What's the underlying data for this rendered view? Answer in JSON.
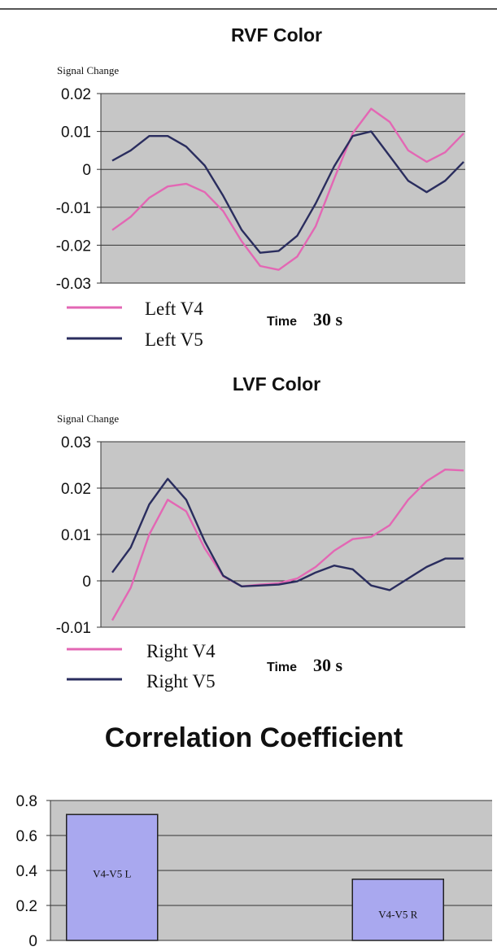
{
  "chart_data": [
    {
      "type": "line",
      "title": "RVF Color",
      "ylabel": "Signal Change",
      "xlabel_time": "Time",
      "xlabel_value": "30 s",
      "ylim": [
        -0.03,
        0.02
      ],
      "yticks": [
        "0.02",
        "0.01",
        "0",
        "-0.01",
        "-0.02",
        "-0.03"
      ],
      "grid": true,
      "legend": "bottom-left",
      "series": [
        {
          "name": "Left V4",
          "color": "#e367b4",
          "values": [
            -0.016,
            -0.0125,
            -0.0075,
            -0.0045,
            -0.0038,
            -0.006,
            -0.011,
            -0.019,
            -0.0255,
            -0.0265,
            -0.023,
            -0.015,
            -0.0025,
            0.0095,
            0.016,
            0.0125,
            0.005,
            0.002,
            0.0045,
            0.0095
          ]
        },
        {
          "name": "Left V5",
          "color": "#2a2d5e",
          "values": [
            0.0023,
            0.005,
            0.0088,
            0.0088,
            0.006,
            0.001,
            -0.007,
            -0.016,
            -0.022,
            -0.0215,
            -0.0175,
            -0.009,
            0.0008,
            0.0088,
            0.01,
            0.0035,
            -0.003,
            -0.006,
            -0.003,
            0.002
          ]
        }
      ]
    },
    {
      "type": "line",
      "title": "LVF Color",
      "ylabel": "Signal Change",
      "xlabel_time": "Time",
      "xlabel_value": "30 s",
      "ylim": [
        -0.01,
        0.03
      ],
      "yticks": [
        "0.03",
        "0.02",
        "0.01",
        "0",
        "-0.01"
      ],
      "grid": true,
      "legend": "bottom-left",
      "series": [
        {
          "name": "Right V4",
          "color": "#e367b4",
          "values": [
            -0.0085,
            -0.0015,
            0.01,
            0.0175,
            0.015,
            0.007,
            0.001,
            -0.0012,
            -0.0008,
            -0.0005,
            0.0005,
            0.003,
            0.0065,
            0.009,
            0.0095,
            0.012,
            0.0175,
            0.0215,
            0.024,
            0.0238
          ]
        },
        {
          "name": "Right V5",
          "color": "#2a2d5e",
          "values": [
            0.0018,
            0.0072,
            0.0165,
            0.022,
            0.0175,
            0.0085,
            0.0011,
            -0.0012,
            -0.001,
            -0.0008,
            -0.0001,
            0.0018,
            0.0033,
            0.0025,
            -0.001,
            -0.002,
            0.0005,
            0.003,
            0.0048,
            0.0048
          ]
        }
      ]
    },
    {
      "type": "bar",
      "title": "Correlation Coefficient",
      "ylim": [
        0,
        0.8
      ],
      "yticks": [
        "0.8",
        "0.6",
        "0.4",
        "0.2",
        "0"
      ],
      "grid": true,
      "bar_color": "#a9a8ef",
      "categories": [
        "V4-V5 L",
        "V4-V5 R"
      ],
      "values": [
        0.72,
        0.35
      ]
    }
  ]
}
